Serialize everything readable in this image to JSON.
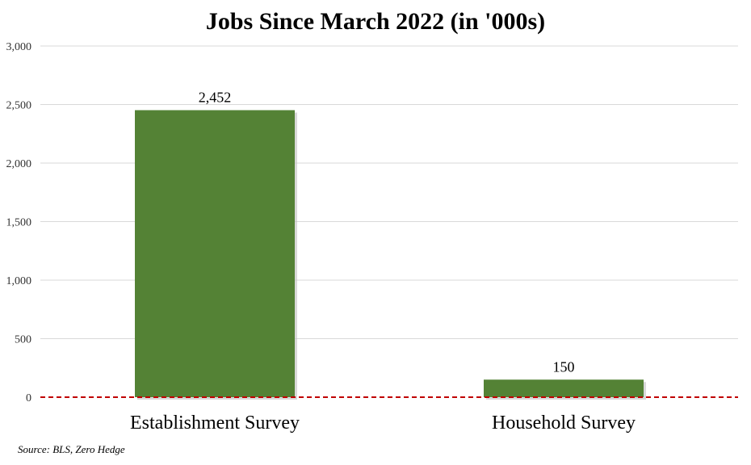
{
  "chart_data": {
    "type": "bar",
    "title": "Jobs Since March 2022 (in '000s)",
    "categories": [
      "Establishment Survey",
      "Household Survey"
    ],
    "values": [
      2452,
      150
    ],
    "data_labels": [
      "2,452",
      "150"
    ],
    "xlabel": "",
    "ylabel": "",
    "ylim": [
      0,
      3000
    ],
    "yticks": [
      0,
      500,
      1000,
      1500,
      2000,
      2500,
      3000
    ],
    "ytick_labels": [
      "0",
      "500",
      "1,000",
      "1,500",
      "2,000",
      "2,500",
      "3,000"
    ],
    "grid": true,
    "bar_color": "#548235",
    "zero_line_color": "#c00000",
    "gridline_color": "#d9d9d9",
    "source": "Source: BLS, Zero Hedge"
  }
}
